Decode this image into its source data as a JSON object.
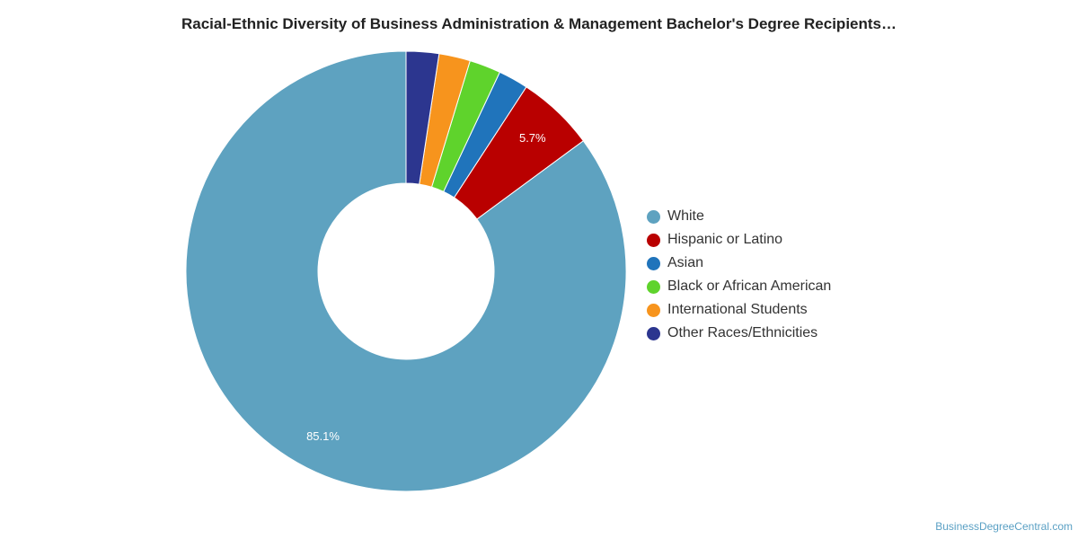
{
  "title": "Racial-Ethnic Diversity of Business Administration & Management Bachelor's Degree Recipients…",
  "credit": "BusinessDegreeCentral.com",
  "chart_data": {
    "type": "pie",
    "variant": "donut",
    "unit": "%",
    "title": "Racial-Ethnic Diversity of Business Administration & Management Bachelor's Degree Recipients…",
    "legend_position": "right",
    "categories": [
      "White",
      "Hispanic or Latino",
      "Asian",
      "Black or African American",
      "International Students",
      "Other Races/Ethnicities"
    ],
    "values": [
      85.1,
      5.7,
      2.2,
      2.3,
      2.3,
      2.4
    ],
    "colors": [
      "#5ea2c0",
      "#b90000",
      "#2074bb",
      "#5fd32c",
      "#f7941d",
      "#2c368f"
    ],
    "data_labels": [
      "85.1%",
      "5.7%",
      "",
      "",
      "",
      ""
    ]
  }
}
